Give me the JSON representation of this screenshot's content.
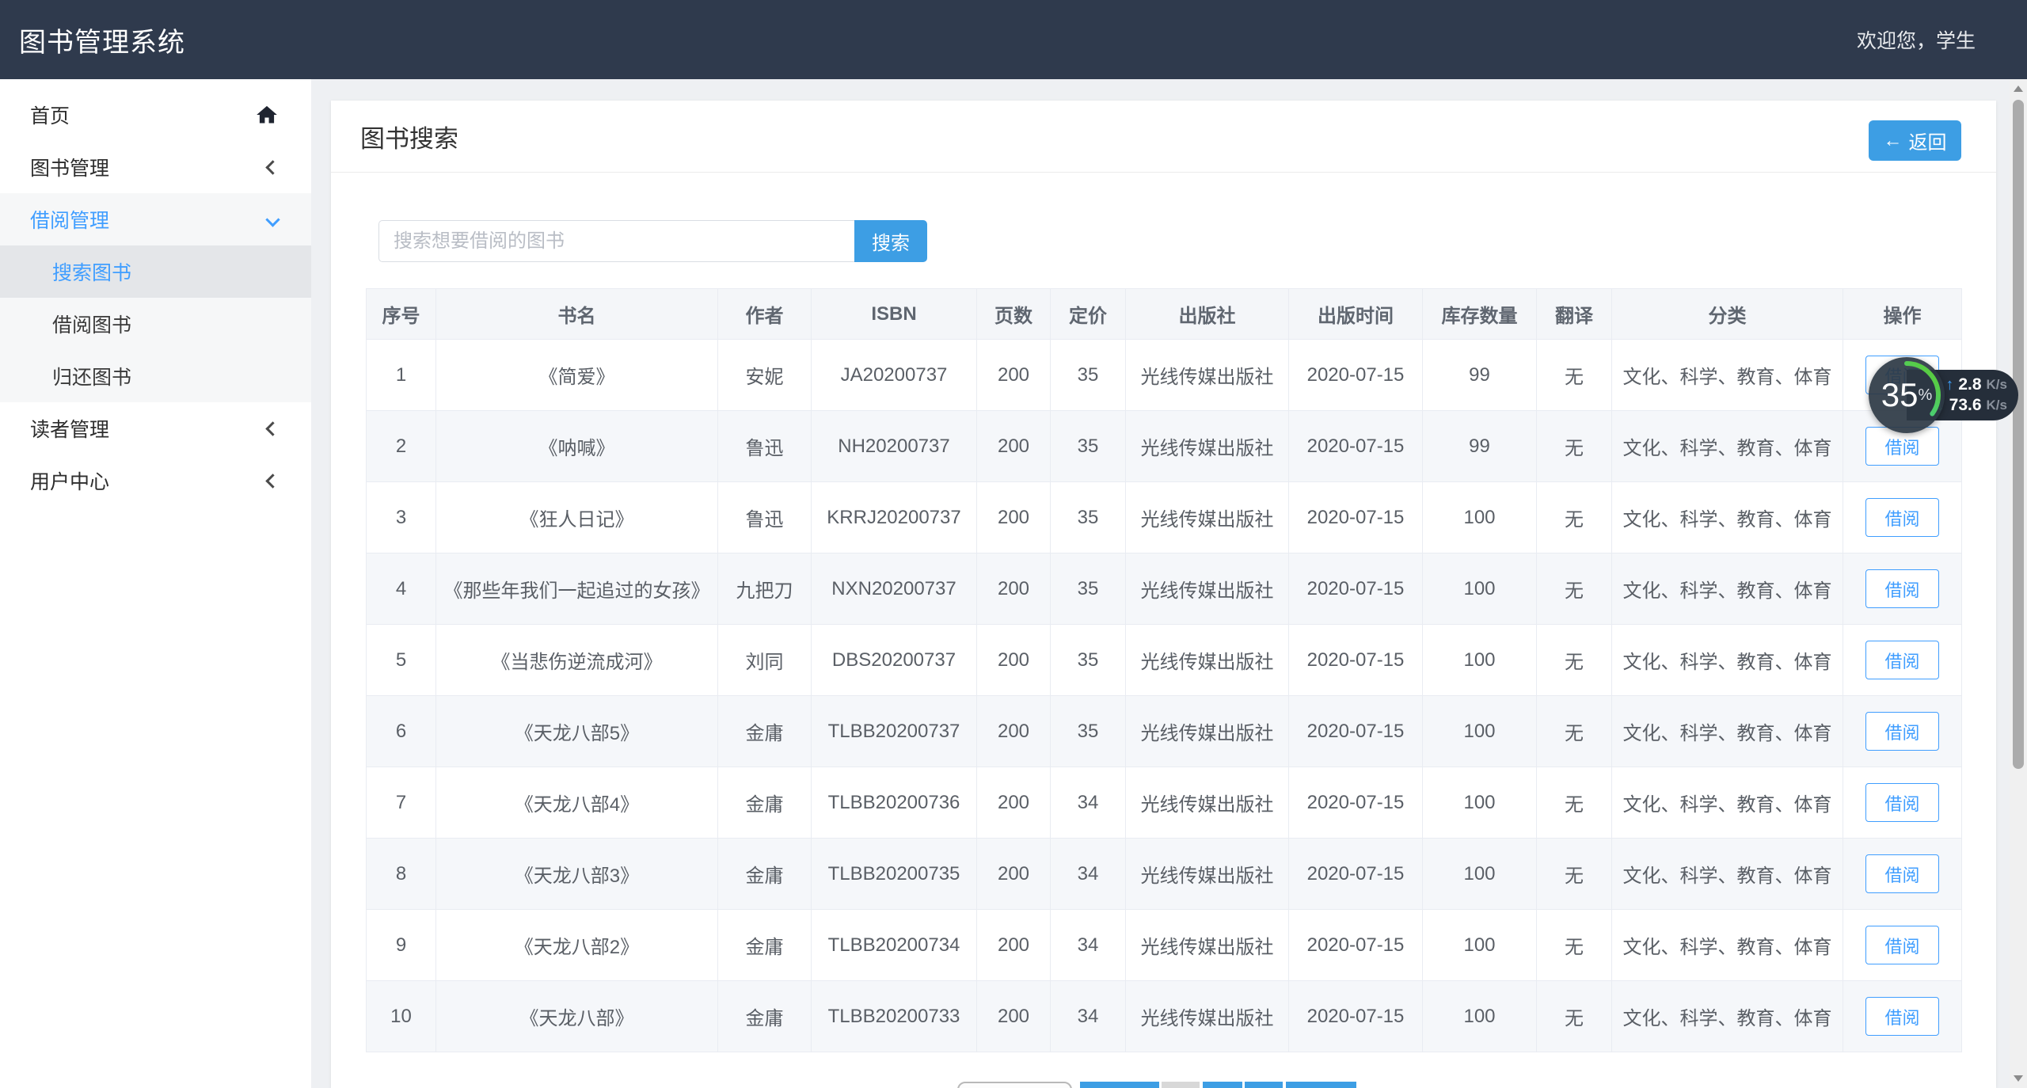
{
  "header": {
    "title": "图书管理系统",
    "welcome": "欢迎您，学生"
  },
  "sidebar": {
    "items": [
      {
        "label": "首页",
        "icon": "home-icon"
      },
      {
        "label": "图书管理",
        "icon": "chevron-left-icon"
      },
      {
        "label": "借阅管理",
        "icon": "chevron-down-icon",
        "expanded": true,
        "children": [
          {
            "label": "搜索图书",
            "active": true
          },
          {
            "label": "借阅图书",
            "active": false
          },
          {
            "label": "归还图书",
            "active": false
          }
        ]
      },
      {
        "label": "读者管理",
        "icon": "chevron-left-icon"
      },
      {
        "label": "用户中心",
        "icon": "chevron-left-icon"
      }
    ]
  },
  "page": {
    "title": "图书搜索",
    "back_arrow": "←",
    "back_label": "返回",
    "search": {
      "placeholder": "搜索想要借阅的图书",
      "button_label": "搜索"
    }
  },
  "table": {
    "columns": [
      "序号",
      "书名",
      "作者",
      "ISBN",
      "页数",
      "定价",
      "出版社",
      "出版时间",
      "库存数量",
      "翻译",
      "分类",
      "操作"
    ],
    "action_label": "借阅",
    "rows": [
      {
        "no": "1",
        "title": "《简爱》",
        "author": "安妮",
        "isbn": "JA20200737",
        "pages": "200",
        "price": "35",
        "publisher": "光线传媒出版社",
        "pub_date": "2020-07-15",
        "stock": "99",
        "translated": "无",
        "category": "文化、科学、教育、体育"
      },
      {
        "no": "2",
        "title": "《呐喊》",
        "author": "鲁迅",
        "isbn": "NH20200737",
        "pages": "200",
        "price": "35",
        "publisher": "光线传媒出版社",
        "pub_date": "2020-07-15",
        "stock": "99",
        "translated": "无",
        "category": "文化、科学、教育、体育"
      },
      {
        "no": "3",
        "title": "《狂人日记》",
        "author": "鲁迅",
        "isbn": "KRRJ20200737",
        "pages": "200",
        "price": "35",
        "publisher": "光线传媒出版社",
        "pub_date": "2020-07-15",
        "stock": "100",
        "translated": "无",
        "category": "文化、科学、教育、体育"
      },
      {
        "no": "4",
        "title": "《那些年我们一起追过的女孩》",
        "author": "九把刀",
        "isbn": "NXN20200737",
        "pages": "200",
        "price": "35",
        "publisher": "光线传媒出版社",
        "pub_date": "2020-07-15",
        "stock": "100",
        "translated": "无",
        "category": "文化、科学、教育、体育"
      },
      {
        "no": "5",
        "title": "《当悲伤逆流成河》",
        "author": "刘同",
        "isbn": "DBS20200737",
        "pages": "200",
        "price": "35",
        "publisher": "光线传媒出版社",
        "pub_date": "2020-07-15",
        "stock": "100",
        "translated": "无",
        "category": "文化、科学、教育、体育"
      },
      {
        "no": "6",
        "title": "《天龙八部5》",
        "author": "金庸",
        "isbn": "TLBB20200737",
        "pages": "200",
        "price": "35",
        "publisher": "光线传媒出版社",
        "pub_date": "2020-07-15",
        "stock": "100",
        "translated": "无",
        "category": "文化、科学、教育、体育"
      },
      {
        "no": "7",
        "title": "《天龙八部4》",
        "author": "金庸",
        "isbn": "TLBB20200736",
        "pages": "200",
        "price": "34",
        "publisher": "光线传媒出版社",
        "pub_date": "2020-07-15",
        "stock": "100",
        "translated": "无",
        "category": "文化、科学、教育、体育"
      },
      {
        "no": "8",
        "title": "《天龙八部3》",
        "author": "金庸",
        "isbn": "TLBB20200735",
        "pages": "200",
        "price": "34",
        "publisher": "光线传媒出版社",
        "pub_date": "2020-07-15",
        "stock": "100",
        "translated": "无",
        "category": "文化、科学、教育、体育"
      },
      {
        "no": "9",
        "title": "《天龙八部2》",
        "author": "金庸",
        "isbn": "TLBB20200734",
        "pages": "200",
        "price": "34",
        "publisher": "光线传媒出版社",
        "pub_date": "2020-07-15",
        "stock": "100",
        "translated": "无",
        "category": "文化、科学、教育、体育"
      },
      {
        "no": "10",
        "title": "《天龙八部》",
        "author": "金庸",
        "isbn": "TLBB20200733",
        "pages": "200",
        "price": "34",
        "publisher": "光线传媒出版社",
        "pub_date": "2020-07-15",
        "stock": "100",
        "translated": "无",
        "category": "文化、科学、教育、体育"
      }
    ]
  },
  "pagination": {
    "buttons": [
      "pill",
      "primary",
      "muted",
      "primary",
      "primary",
      "primary"
    ]
  },
  "speed_widget": {
    "progress": "35",
    "percent_sign": "%",
    "up_arrow": "↑",
    "up_value": "2.8",
    "up_unit": "K/s",
    "down_arrow": "↓",
    "down_value": "73.6",
    "down_unit": "K/s"
  },
  "colors": {
    "header_bg": "#2f3a4d",
    "accent_blue": "#3d9ee4",
    "active_link_blue": "#409eff",
    "ring_green_start": "#35d0c0",
    "ring_green_end": "#5ecb2e",
    "upload_arrow_blue": "#3b9cf5",
    "download_arrow_green": "#41b883"
  }
}
